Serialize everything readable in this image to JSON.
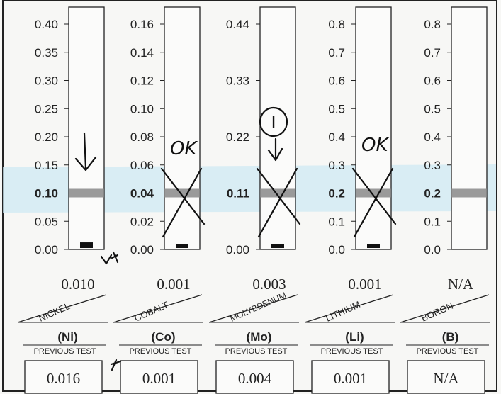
{
  "chart_data": [
    {
      "type": "bar",
      "element": "NICKEL",
      "symbol": "(Ni)",
      "ticks": [
        "0.40",
        "0.35",
        "0.30",
        "0.25",
        "0.20",
        "0.15",
        "0.10",
        "0.05",
        "0.00"
      ],
      "ylim": [
        0,
        0.4
      ],
      "normal": 0.1,
      "value": 0.01,
      "value_label": "0.010",
      "previous_label": "PREVIOUS TEST",
      "previous": "0.016",
      "mark": "↓"
    },
    {
      "type": "bar",
      "element": "COBALT",
      "symbol": "(Co)",
      "ticks": [
        "0.16",
        "0.14",
        "0.12",
        "0.10",
        "0.08",
        "0.06",
        "0.04",
        "0.02",
        "0.00"
      ],
      "ylim": [
        0,
        0.16
      ],
      "normal": 0.04,
      "value": 0.001,
      "value_label": "0.001",
      "previous_label": "PREVIOUS TEST",
      "previous": "0.001",
      "mark": "OK"
    },
    {
      "type": "bar",
      "element": "MOLYBDENUM",
      "symbol": "(Mo)",
      "ticks": [
        "0.44",
        "0.33",
        "0.22",
        "0.11",
        "0.00"
      ],
      "ylim": [
        0,
        0.44
      ],
      "normal": 0.11,
      "value": 0.003,
      "value_label": "0.003",
      "previous_label": "PREVIOUS TEST",
      "previous": "0.004",
      "mark": "I"
    },
    {
      "type": "bar",
      "element": "LITHIUM",
      "symbol": "(Li)",
      "ticks": [
        "0.8",
        "0.7",
        "0.6",
        "0.5",
        "0.4",
        "0.3",
        "0.2",
        "0.1",
        "0.0"
      ],
      "ylim": [
        0,
        0.8
      ],
      "normal": 0.2,
      "value": 0.001,
      "value_label": "0.001",
      "previous_label": "PREVIOUS TEST",
      "previous": "0.001",
      "mark": "OK"
    },
    {
      "type": "bar",
      "element": "BORON",
      "symbol": "(B)",
      "ticks": [
        "0.8",
        "0.7",
        "0.6",
        "0.5",
        "0.4",
        "0.3",
        "0.2",
        "0.1",
        "0.0"
      ],
      "ylim": [
        0,
        0.8
      ],
      "normal": 0.2,
      "value": null,
      "value_label": "N/A",
      "previous_label": "PREVIOUS TEST",
      "previous": "N/A",
      "mark": ""
    }
  ],
  "colors": {
    "band": "#cfe9f3",
    "normal_line": "#888888",
    "ink": "#222222",
    "pen": "#111111"
  }
}
